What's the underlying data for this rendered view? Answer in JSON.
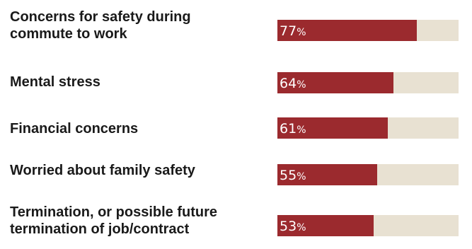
{
  "chart_data": {
    "type": "bar",
    "orientation": "horizontal",
    "title": "",
    "xlabel": "",
    "ylabel": "",
    "xlim": [
      0,
      100
    ],
    "unit": "%",
    "categories": [
      "Concerns for safety during commute to work",
      "Mental stress",
      "Financial concerns",
      "Worried about family safety",
      "Termination, or possible future termination of job/contract"
    ],
    "values": [
      77,
      64,
      61,
      55,
      53
    ],
    "colors": {
      "bar": "#9b2a2e",
      "track": "#e8e1d2",
      "label": "#1a1a1a",
      "value_text": "#ffffff"
    }
  }
}
